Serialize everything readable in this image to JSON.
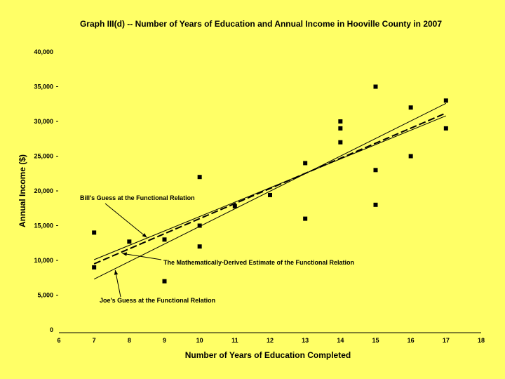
{
  "chart_data": {
    "type": "scatter",
    "title": "Graph III(d) -- Number of Years of Education and Annual Income in Hooville County in 2007",
    "xlabel": "Number of Years of Education Completed",
    "ylabel": "Annual Income ($)",
    "xlim": [
      6,
      18
    ],
    "ylim": [
      0,
      40000
    ],
    "x_ticks": [
      "6",
      "7",
      "8",
      "9",
      "10",
      "11",
      "12",
      "13",
      "14",
      "15",
      "16",
      "17",
      "18"
    ],
    "y_ticks": [
      "0",
      "5,000",
      "10,000",
      "15,000",
      "20,000",
      "25,000",
      "30,000",
      "35,000",
      "40,000"
    ],
    "grid": false,
    "points": [
      {
        "x": 7,
        "y": 14000
      },
      {
        "x": 7,
        "y": 9000
      },
      {
        "x": 8,
        "y": 12700
      },
      {
        "x": 9,
        "y": 13000
      },
      {
        "x": 9,
        "y": 7000
      },
      {
        "x": 10,
        "y": 22000
      },
      {
        "x": 10,
        "y": 15000
      },
      {
        "x": 10,
        "y": 12000
      },
      {
        "x": 11,
        "y": 17800
      },
      {
        "x": 12,
        "y": 19400
      },
      {
        "x": 13,
        "y": 24000
      },
      {
        "x": 13,
        "y": 16000
      },
      {
        "x": 14,
        "y": 30000
      },
      {
        "x": 14,
        "y": 29000
      },
      {
        "x": 14,
        "y": 27000
      },
      {
        "x": 15,
        "y": 35000
      },
      {
        "x": 15,
        "y": 23000
      },
      {
        "x": 15,
        "y": 18000
      },
      {
        "x": 16,
        "y": 32000
      },
      {
        "x": 16,
        "y": 25000
      },
      {
        "x": 17,
        "y": 33000
      },
      {
        "x": 17,
        "y": 29000
      }
    ],
    "lines": [
      {
        "style": "solid",
        "x": [
          7,
          17
        ],
        "y": [
          10100,
          30800
        ]
      },
      {
        "style": "dashed",
        "x": [
          7,
          17
        ],
        "y": [
          9500,
          31200
        ]
      },
      {
        "style": "solid",
        "x": [
          7,
          17
        ],
        "y": [
          7300,
          32600
        ]
      }
    ],
    "annotations": [
      {
        "text": "Bill's Guess at the Functional Relation",
        "target": {
          "x": 8.5,
          "y": 13300
        }
      },
      {
        "text": "The Mathematically-Derived Estimate of the Functional Relation",
        "target": {
          "x": 7.8,
          "y": 11000
        }
      },
      {
        "text": "Joe's Guess at the Functional Relation",
        "target": {
          "x": 7.6,
          "y": 8600
        }
      }
    ]
  }
}
